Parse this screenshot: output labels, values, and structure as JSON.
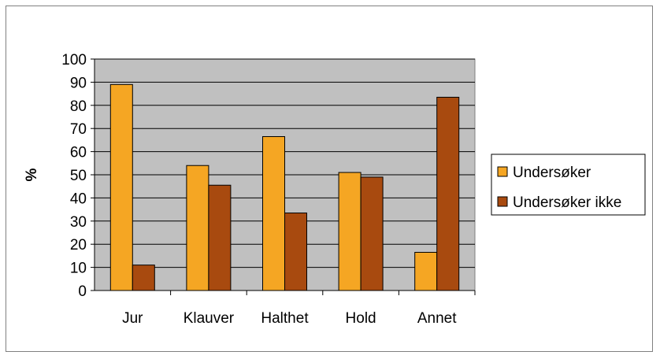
{
  "chart_data": {
    "type": "bar",
    "categories": [
      "Jur",
      "Klauver",
      "Halthet",
      "Hold",
      "Annet"
    ],
    "series": [
      {
        "name": "Undersøker",
        "values": [
          89,
          54,
          66.5,
          51,
          16.5
        ],
        "color": "#F5A623"
      },
      {
        "name": "Undersøker ikke",
        "values": [
          11,
          45.5,
          33.5,
          49,
          83.5
        ],
        "color": "#A84A0F"
      }
    ],
    "ylabel": "%",
    "ylim": [
      0,
      100
    ],
    "yticks": [
      0,
      10,
      20,
      30,
      40,
      50,
      60,
      70,
      80,
      90,
      100
    ],
    "plot_background": "#C0C0C0",
    "grid": true,
    "legend_position": "right"
  }
}
